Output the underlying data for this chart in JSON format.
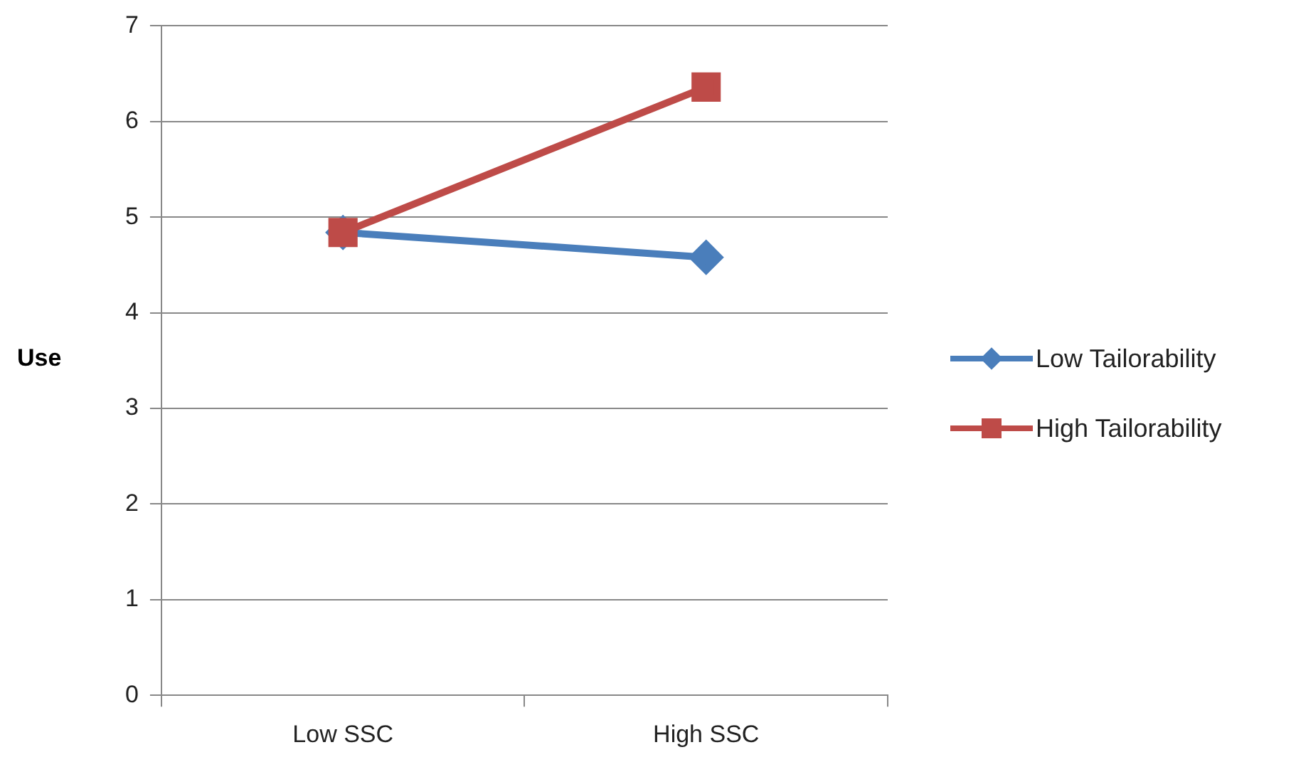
{
  "chart_data": {
    "type": "line",
    "ylabel": "Use",
    "categories": [
      "Low SSC",
      "High SSC"
    ],
    "series": [
      {
        "name": "Low Tailorability",
        "color": "#4a7ebb",
        "values": [
          4.84,
          4.58
        ],
        "marker": "diamond"
      },
      {
        "name": "High Tailorability",
        "color": "#be4b48",
        "values": [
          4.84,
          6.36
        ],
        "marker": "square"
      }
    ],
    "ylim": [
      0,
      7
    ],
    "yticks": [
      0,
      1,
      2,
      3,
      4,
      5,
      6,
      7
    ],
    "grid": "y",
    "legend": "right",
    "line_style": "solid"
  }
}
